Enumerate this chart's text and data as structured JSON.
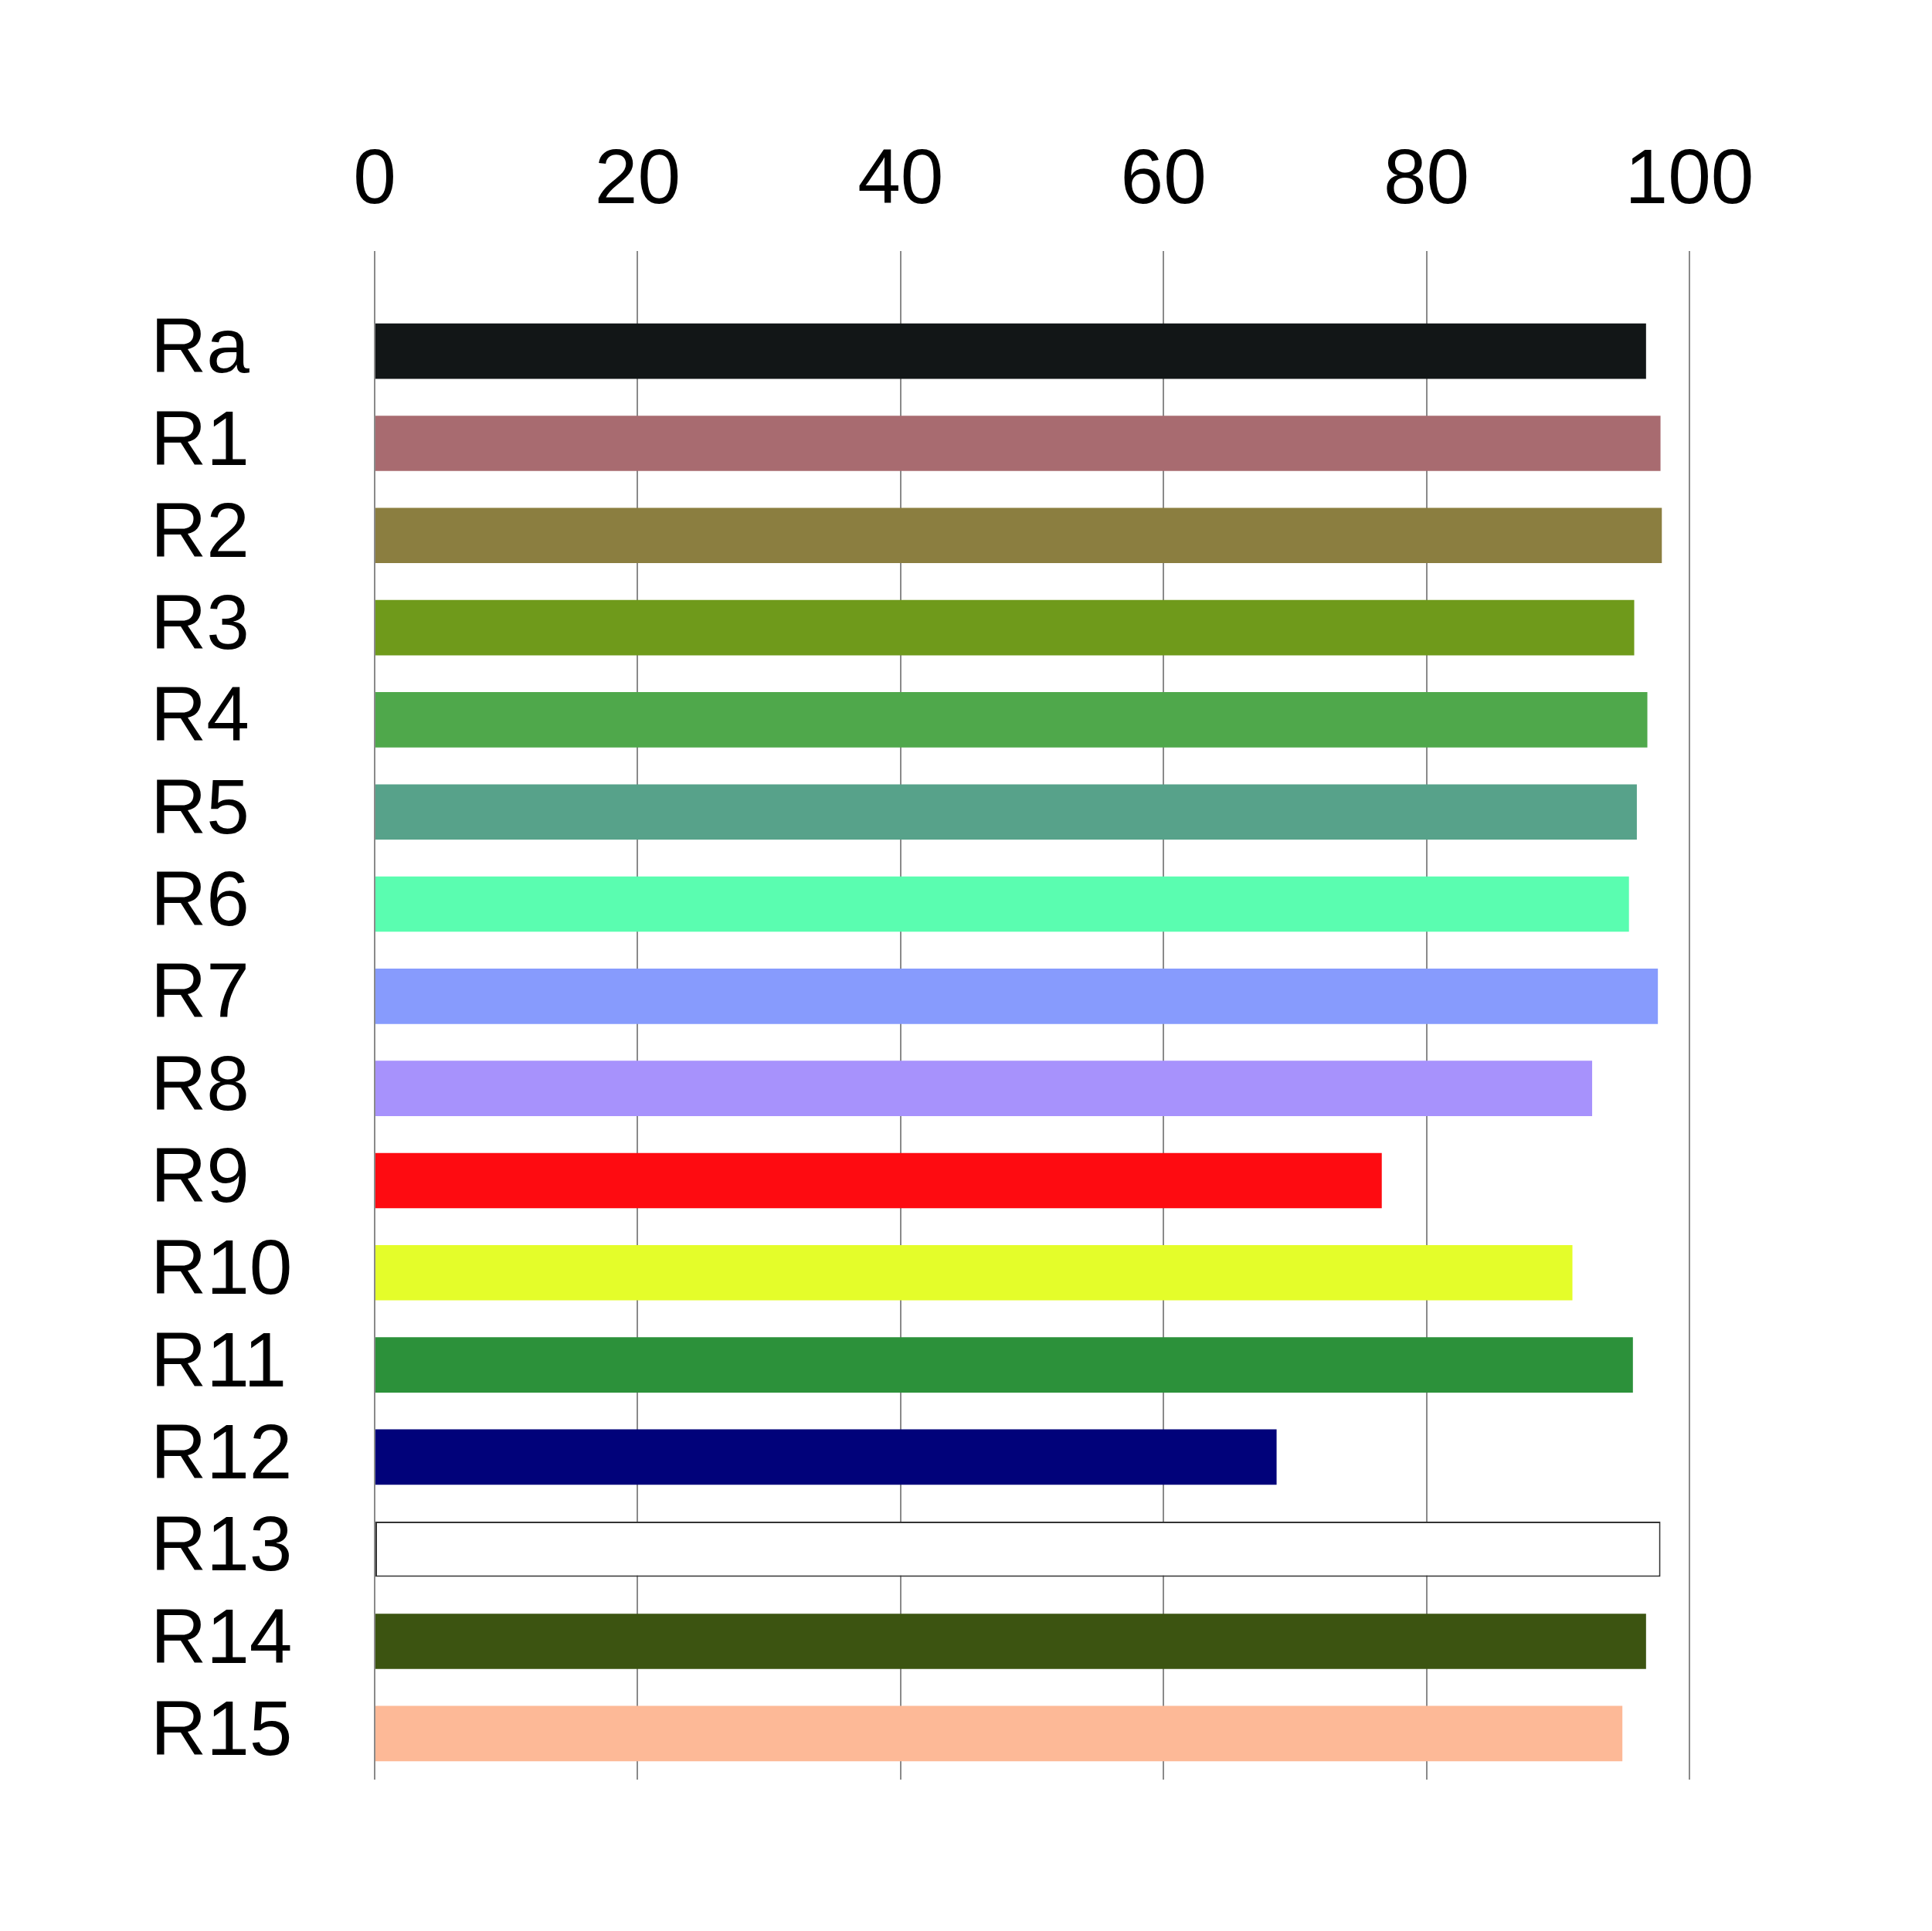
{
  "chart_data": {
    "type": "bar",
    "orientation": "horizontal",
    "categories": [
      "Ra",
      "R1",
      "R2",
      "R3",
      "R4",
      "R5",
      "R6",
      "R7",
      "R8",
      "R9",
      "R10",
      "R11",
      "R12",
      "R13",
      "R14",
      "R15"
    ],
    "values": [
      96.7,
      97.8,
      97.9,
      95.8,
      96.8,
      96.0,
      95.4,
      97.6,
      92.6,
      76.6,
      91.1,
      95.7,
      68.6,
      97.8,
      96.7,
      94.9
    ],
    "colors": [
      "#121617",
      "#a86b70",
      "#8b7e40",
      "#6f9a1b",
      "#4fa84b",
      "#57a28a",
      "#5afdb0",
      "#879bfd",
      "#a792fc",
      "#fe0b11",
      "#e4fd2a",
      "#2c913a",
      "#01027a",
      "#ffffff",
      "#3c5411",
      "#fdb997"
    ],
    "xlim": [
      0,
      100
    ],
    "xticks": [
      0,
      20,
      40,
      60,
      80,
      100
    ],
    "grid": "x"
  }
}
